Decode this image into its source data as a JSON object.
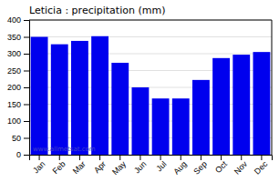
{
  "chart_data": {
    "type": "bar",
    "title": "Leticia : precipitation (mm)",
    "categories": [
      "Jan",
      "Feb",
      "Mar",
      "Apr",
      "May",
      "Jun",
      "Jul",
      "Aug",
      "Sep",
      "Oct",
      "Nov",
      "Dec"
    ],
    "values": [
      350,
      328,
      338,
      352,
      273,
      200,
      167,
      167,
      222,
      287,
      297,
      305
    ],
    "color": "#0000ee",
    "ylim": [
      0,
      400
    ],
    "yticks": [
      0,
      50,
      100,
      150,
      200,
      250,
      300,
      350,
      400
    ],
    "grid": true,
    "annotations": [
      "www.allmetsat.com"
    ]
  }
}
